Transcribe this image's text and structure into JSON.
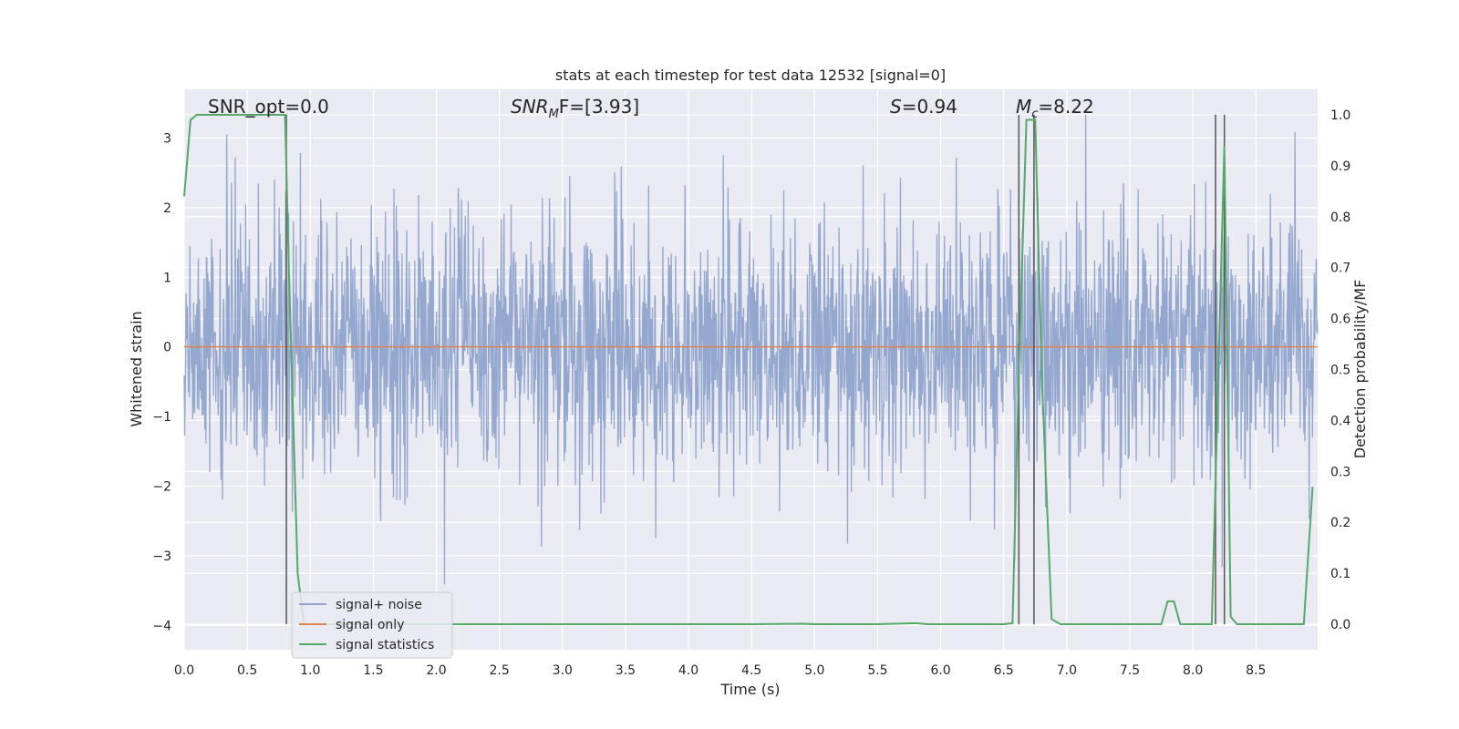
{
  "chart_data": {
    "type": "line",
    "title": "stats at each timestep for test data 12532 [signal=0]",
    "xlabel": "Time (s)",
    "ylabel": "Whitened strain",
    "y2label": "Detection probability/MF",
    "xlim": [
      0.0,
      8.99
    ],
    "ylim": [
      -4.35,
      3.7
    ],
    "y2lim": [
      -0.05,
      1.05
    ],
    "x_ticks": [
      0.0,
      0.5,
      1.0,
      1.5,
      2.0,
      2.5,
      3.0,
      3.5,
      4.0,
      4.5,
      5.0,
      5.5,
      6.0,
      6.5,
      7.0,
      7.5,
      8.0,
      8.5
    ],
    "x_tick_labels": [
      "0.0",
      "0.5",
      "1.0",
      "1.5",
      "2.0",
      "2.5",
      "3.0",
      "3.5",
      "4.0",
      "4.5",
      "5.0",
      "5.5",
      "6.0",
      "6.5",
      "7.0",
      "7.5",
      "8.0",
      "8.5"
    ],
    "y_ticks": [
      3,
      2,
      1,
      0,
      -1,
      -2,
      -3,
      -4
    ],
    "y_tick_labels": [
      "3",
      "2",
      "1",
      "0",
      "−1",
      "−2",
      "−3",
      "−4"
    ],
    "y2_ticks": [
      1.0,
      0.9,
      0.8,
      0.7,
      0.6,
      0.5,
      0.4,
      0.3,
      0.2,
      0.1,
      0.0
    ],
    "y2_tick_labels": [
      "1.0",
      "0.9",
      "0.8",
      "0.7",
      "0.6",
      "0.5",
      "0.4",
      "0.3",
      "0.2",
      "0.1",
      "0.0"
    ],
    "grid": true,
    "legend_position": "lower-left",
    "annotations": {
      "snr_opt": "SNR_opt=0.0",
      "snr_mf_main": "SNR",
      "snr_mf_sub": "M",
      "snr_mf_rest": "F=[3.93]",
      "s_main": "S",
      "s_rest": "=0.94",
      "mc_main": "M",
      "mc_sub": "c",
      "mc_rest": "=8.22"
    },
    "series": [
      {
        "name": "signal+ noise",
        "color": "#8fa3cc",
        "axis": "left",
        "description_values": {
          "typical_range": [
            -1.8,
            1.9
          ],
          "max": 3.35,
          "min": -3.55
        }
      },
      {
        "name": "signal only",
        "color": "#dd8452",
        "axis": "left",
        "x": [
          0.0,
          8.99
        ],
        "y": [
          0.0,
          0.0
        ]
      },
      {
        "name": "signal statistics",
        "color": "#55a868",
        "axis": "right",
        "x": [
          0.0,
          0.05,
          0.1,
          0.2,
          0.3,
          0.4,
          0.5,
          0.6,
          0.7,
          0.8,
          0.83,
          0.9,
          0.95,
          1.0,
          1.5,
          2.0,
          2.5,
          3.0,
          3.5,
          4.0,
          4.5,
          4.9,
          5.0,
          5.5,
          5.8,
          5.9,
          6.0,
          6.5,
          6.57,
          6.62,
          6.68,
          6.75,
          6.8,
          6.88,
          6.95,
          7.0,
          7.5,
          7.6,
          7.75,
          7.8,
          7.85,
          7.9,
          8.0,
          8.1,
          8.15,
          8.25,
          8.3,
          8.35,
          8.5,
          8.88,
          8.95
        ],
        "y": [
          0.84,
          0.99,
          1.0,
          1.0,
          1.0,
          1.0,
          1.0,
          1.0,
          1.0,
          1.0,
          0.7,
          0.1,
          0.0,
          0.0,
          0.0,
          0.0,
          0.0,
          0.0,
          0.0,
          0.0,
          0.0,
          0.001,
          0.0,
          0.0,
          0.002,
          0.0,
          0.0,
          0.0,
          0.002,
          0.5,
          0.99,
          0.99,
          0.5,
          0.01,
          0.0,
          0.0,
          0.0,
          0.0,
          0.0,
          0.045,
          0.045,
          0.0,
          0.0,
          0.0,
          0.0,
          0.94,
          0.015,
          0.0,
          0.0,
          0.0,
          0.27
        ]
      }
    ],
    "vertical_markers": [
      0.81,
      6.62,
      6.74,
      8.18,
      8.25
    ]
  }
}
